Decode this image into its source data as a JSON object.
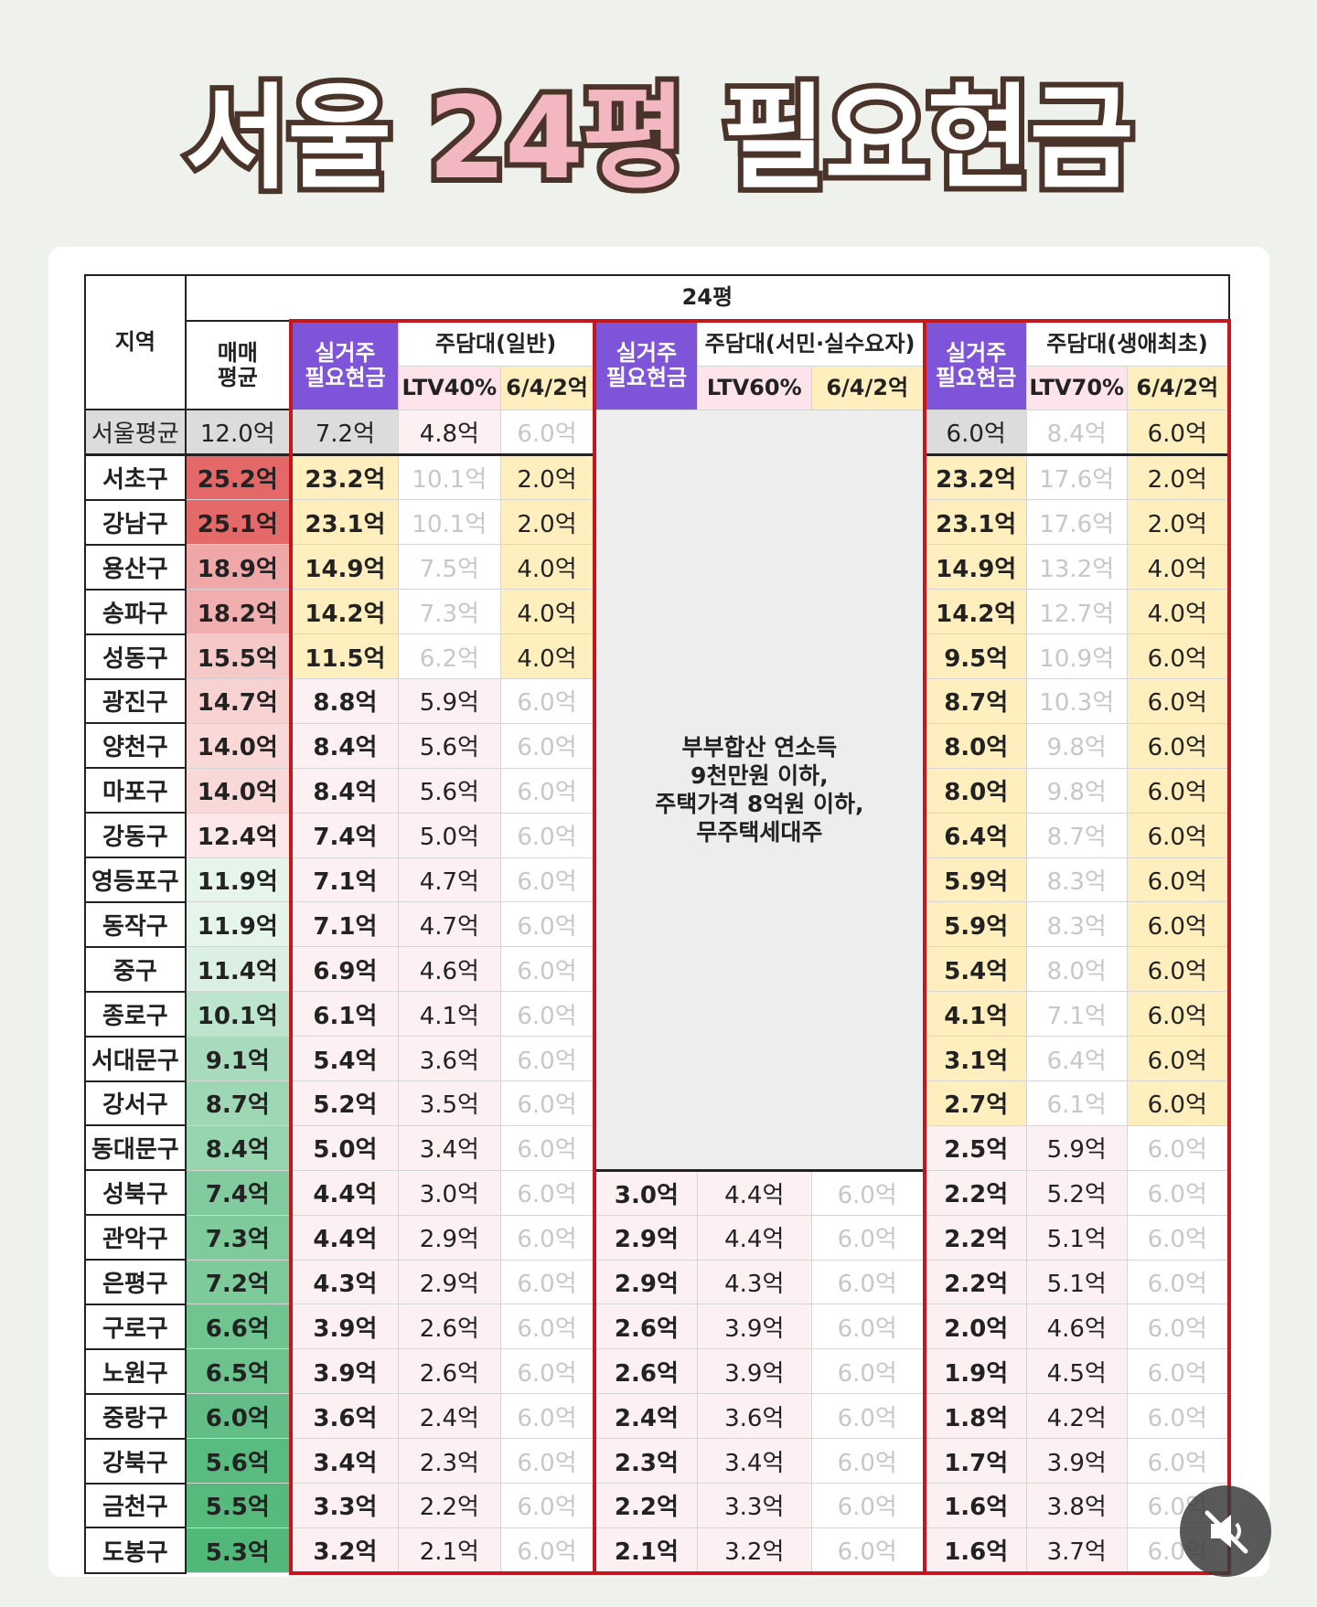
{
  "title": {
    "part1": "서울",
    "part2": "24평",
    "part3": "필요현금"
  },
  "table": {
    "header": {
      "region": "지역",
      "size": "24평",
      "avg": "매매\n평균",
      "groups": [
        {
          "real": "실거주\n필요현금",
          "loan": "주담대(일반)",
          "ltv": "LTV40%",
          "cap": "6/4/2억"
        },
        {
          "real": "실거주\n필요현금",
          "loan": "주담대(서민·실수요자)",
          "ltv": "LTV60%",
          "cap": "6/4/2억"
        },
        {
          "real": "실거주\n필요현금",
          "loan": "주담대(생애최초)",
          "ltv": "LTV70%",
          "cap": "6/4/2억"
        }
      ]
    },
    "note": [
      "부부합산 연소득",
      "9천만원 이하,",
      "주택가격 8억원 이하,",
      "무주택세대주"
    ],
    "rows": [
      [
        "서울평균",
        "12.0억",
        "7.2억",
        "4.8억",
        "6.0억",
        "6.0억",
        "8.4억",
        "6.0억"
      ],
      [
        "서초구",
        "25.2억",
        "23.2억",
        "10.1억",
        "2.0억",
        "23.2억",
        "17.6억",
        "2.0억"
      ],
      [
        "강남구",
        "25.1억",
        "23.1억",
        "10.1억",
        "2.0억",
        "23.1억",
        "17.6억",
        "2.0억"
      ],
      [
        "용산구",
        "18.9억",
        "14.9억",
        "7.5억",
        "4.0억",
        "14.9억",
        "13.2억",
        "4.0억"
      ],
      [
        "송파구",
        "18.2억",
        "14.2억",
        "7.3억",
        "4.0억",
        "14.2억",
        "12.7억",
        "4.0억"
      ],
      [
        "성동구",
        "15.5억",
        "11.5억",
        "6.2억",
        "4.0억",
        "9.5억",
        "10.9억",
        "6.0억"
      ],
      [
        "광진구",
        "14.7억",
        "8.8억",
        "5.9억",
        "6.0억",
        "8.7억",
        "10.3억",
        "6.0억"
      ],
      [
        "양천구",
        "14.0억",
        "8.4억",
        "5.6억",
        "6.0억",
        "8.0억",
        "9.8억",
        "6.0억"
      ],
      [
        "마포구",
        "14.0억",
        "8.4억",
        "5.6억",
        "6.0억",
        "8.0억",
        "9.8억",
        "6.0억"
      ],
      [
        "강동구",
        "12.4억",
        "7.4억",
        "5.0억",
        "6.0억",
        "6.4억",
        "8.7억",
        "6.0억"
      ],
      [
        "영등포구",
        "11.9억",
        "7.1억",
        "4.7억",
        "6.0억",
        "5.9억",
        "8.3억",
        "6.0억"
      ],
      [
        "동작구",
        "11.9억",
        "7.1억",
        "4.7억",
        "6.0억",
        "5.9억",
        "8.3억",
        "6.0억"
      ],
      [
        "중구",
        "11.4억",
        "6.9억",
        "4.6억",
        "6.0억",
        "5.4억",
        "8.0억",
        "6.0억"
      ],
      [
        "종로구",
        "10.1억",
        "6.1억",
        "4.1억",
        "6.0억",
        "4.1억",
        "7.1억",
        "6.0억"
      ],
      [
        "서대문구",
        "9.1억",
        "5.4억",
        "3.6억",
        "6.0억",
        "3.1억",
        "6.4억",
        "6.0억"
      ],
      [
        "강서구",
        "8.7억",
        "5.2억",
        "3.5억",
        "6.0억",
        "2.7억",
        "6.1억",
        "6.0억"
      ],
      [
        "동대문구",
        "8.4억",
        "5.0억",
        "3.4억",
        "6.0억",
        "2.5억",
        "5.9억",
        "6.0억"
      ],
      [
        "성북구",
        "7.4억",
        "4.4억",
        "3.0억",
        "6.0억",
        "3.0억",
        "4.4억",
        "6.0억",
        "2.2억",
        "5.2억",
        "6.0억"
      ],
      [
        "관악구",
        "7.3억",
        "4.4억",
        "2.9억",
        "6.0억",
        "2.9억",
        "4.4억",
        "6.0억",
        "2.2억",
        "5.1억",
        "6.0억"
      ],
      [
        "은평구",
        "7.2억",
        "4.3억",
        "2.9억",
        "6.0억",
        "2.9억",
        "4.3억",
        "6.0억",
        "2.2억",
        "5.1억",
        "6.0억"
      ],
      [
        "구로구",
        "6.6억",
        "3.9억",
        "2.6억",
        "6.0억",
        "2.6억",
        "3.9억",
        "6.0억",
        "2.0억",
        "4.6억",
        "6.0억"
      ],
      [
        "노원구",
        "6.5억",
        "3.9억",
        "2.6억",
        "6.0억",
        "2.6억",
        "3.9억",
        "6.0억",
        "1.9억",
        "4.5억",
        "6.0억"
      ],
      [
        "중랑구",
        "6.0억",
        "3.6억",
        "2.4억",
        "6.0억",
        "2.4억",
        "3.6억",
        "6.0억",
        "1.8억",
        "4.2억",
        "6.0억"
      ],
      [
        "강북구",
        "5.6억",
        "3.4억",
        "2.3억",
        "6.0억",
        "2.3억",
        "3.4억",
        "6.0억",
        "1.7억",
        "3.9억",
        "6.0억"
      ],
      [
        "금천구",
        "5.5억",
        "3.3억",
        "2.2억",
        "6.0억",
        "2.2억",
        "3.3억",
        "6.0억",
        "1.6억",
        "3.8억",
        "6.0억"
      ],
      [
        "도봉구",
        "5.3억",
        "3.2억",
        "2.1억",
        "6.0억",
        "2.1억",
        "3.2억",
        "6.0억",
        "1.6억",
        "3.7억",
        "6.0억"
      ]
    ]
  }
}
